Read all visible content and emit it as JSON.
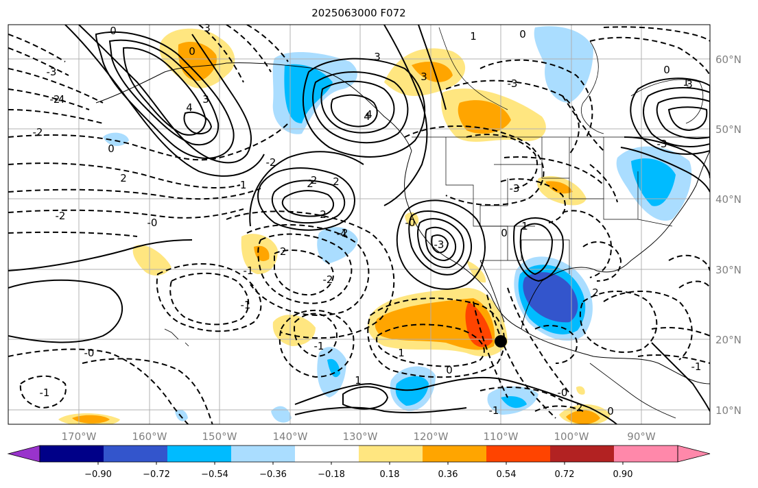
{
  "title": "2025063000 F072",
  "map": {
    "lon_ticks": [
      "170°W",
      "160°W",
      "150°W",
      "140°W",
      "130°W",
      "120°W",
      "110°W",
      "100°W",
      "90°W"
    ],
    "lat_ticks": [
      "60°N",
      "50°N",
      "40°N",
      "30°N",
      "20°N",
      "10°N"
    ],
    "grid": true,
    "marker": "storm-center-dot"
  },
  "colorbar": {
    "ticks": [
      "−0.90",
      "−0.72",
      "−0.54",
      "−0.36",
      "−0.18",
      "0.18",
      "0.36",
      "0.54",
      "0.72",
      "0.90"
    ],
    "colors": [
      "#9933cc",
      "#000088",
      "#3355cc",
      "#00bbff",
      "#aaddff",
      "#ffffff",
      "#ffe680",
      "#ffa500",
      "#ff4400",
      "#b22222",
      "#ff88aa",
      "#ff88aa"
    ]
  },
  "contour_labels": [
    "3",
    "0",
    "3",
    "4",
    "-4",
    "-3",
    "3",
    "4",
    "1",
    "3",
    "0",
    "3",
    "-2",
    "-3",
    "0",
    "2",
    "2",
    "2",
    "-1",
    "-0",
    "-2",
    "2",
    "-2",
    "-2",
    "-2",
    "-0",
    "0",
    "1",
    "-3",
    "-1",
    "-1",
    "0",
    "1",
    "-3",
    "4",
    "-2",
    "0",
    "-2",
    "-4",
    "-3",
    "2",
    "-2",
    "-1",
    "-0",
    "-1",
    "0",
    "1",
    "-0",
    "-1",
    "-2",
    "0",
    "1",
    "-1"
  ]
}
